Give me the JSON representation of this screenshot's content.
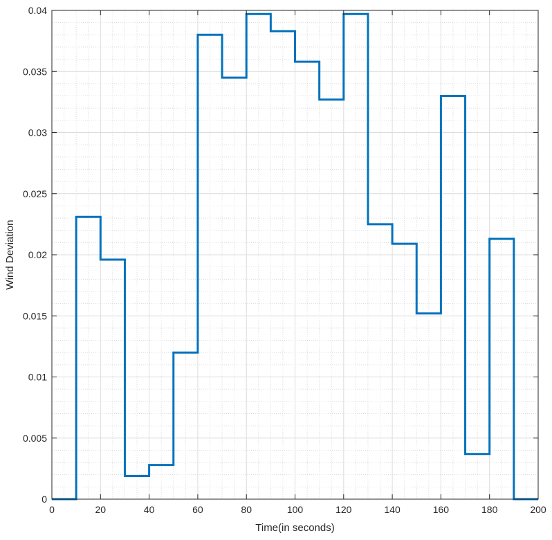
{
  "chart_data": {
    "type": "line",
    "step": true,
    "title": "",
    "xlabel": "Time(in seconds)",
    "ylabel": "Wind Deviation",
    "xlim": [
      0,
      200
    ],
    "ylim": [
      0,
      0.04
    ],
    "xticks": [
      "0",
      "20",
      "40",
      "60",
      "80",
      "100",
      "120",
      "140",
      "160",
      "180",
      "200"
    ],
    "yticks": [
      "0",
      "0.005",
      "0.01",
      "0.015",
      "0.02",
      "0.025",
      "0.03",
      "0.035",
      "0.04"
    ],
    "grid": true,
    "minor_grid": true,
    "series": [
      {
        "color": "#0072BD",
        "x": [
          0,
          10,
          20,
          30,
          40,
          50,
          60,
          70,
          80,
          90,
          100,
          110,
          120,
          130,
          140,
          150,
          160,
          170,
          180,
          190,
          200
        ],
        "y": [
          0,
          0.0231,
          0.0196,
          0.0019,
          0.0028,
          0.012,
          0.038,
          0.0345,
          0.0397,
          0.0383,
          0.0358,
          0.0327,
          0.0397,
          0.0225,
          0.0209,
          0.0152,
          0.033,
          0.0037,
          0.0213,
          0,
          0
        ]
      }
    ]
  }
}
